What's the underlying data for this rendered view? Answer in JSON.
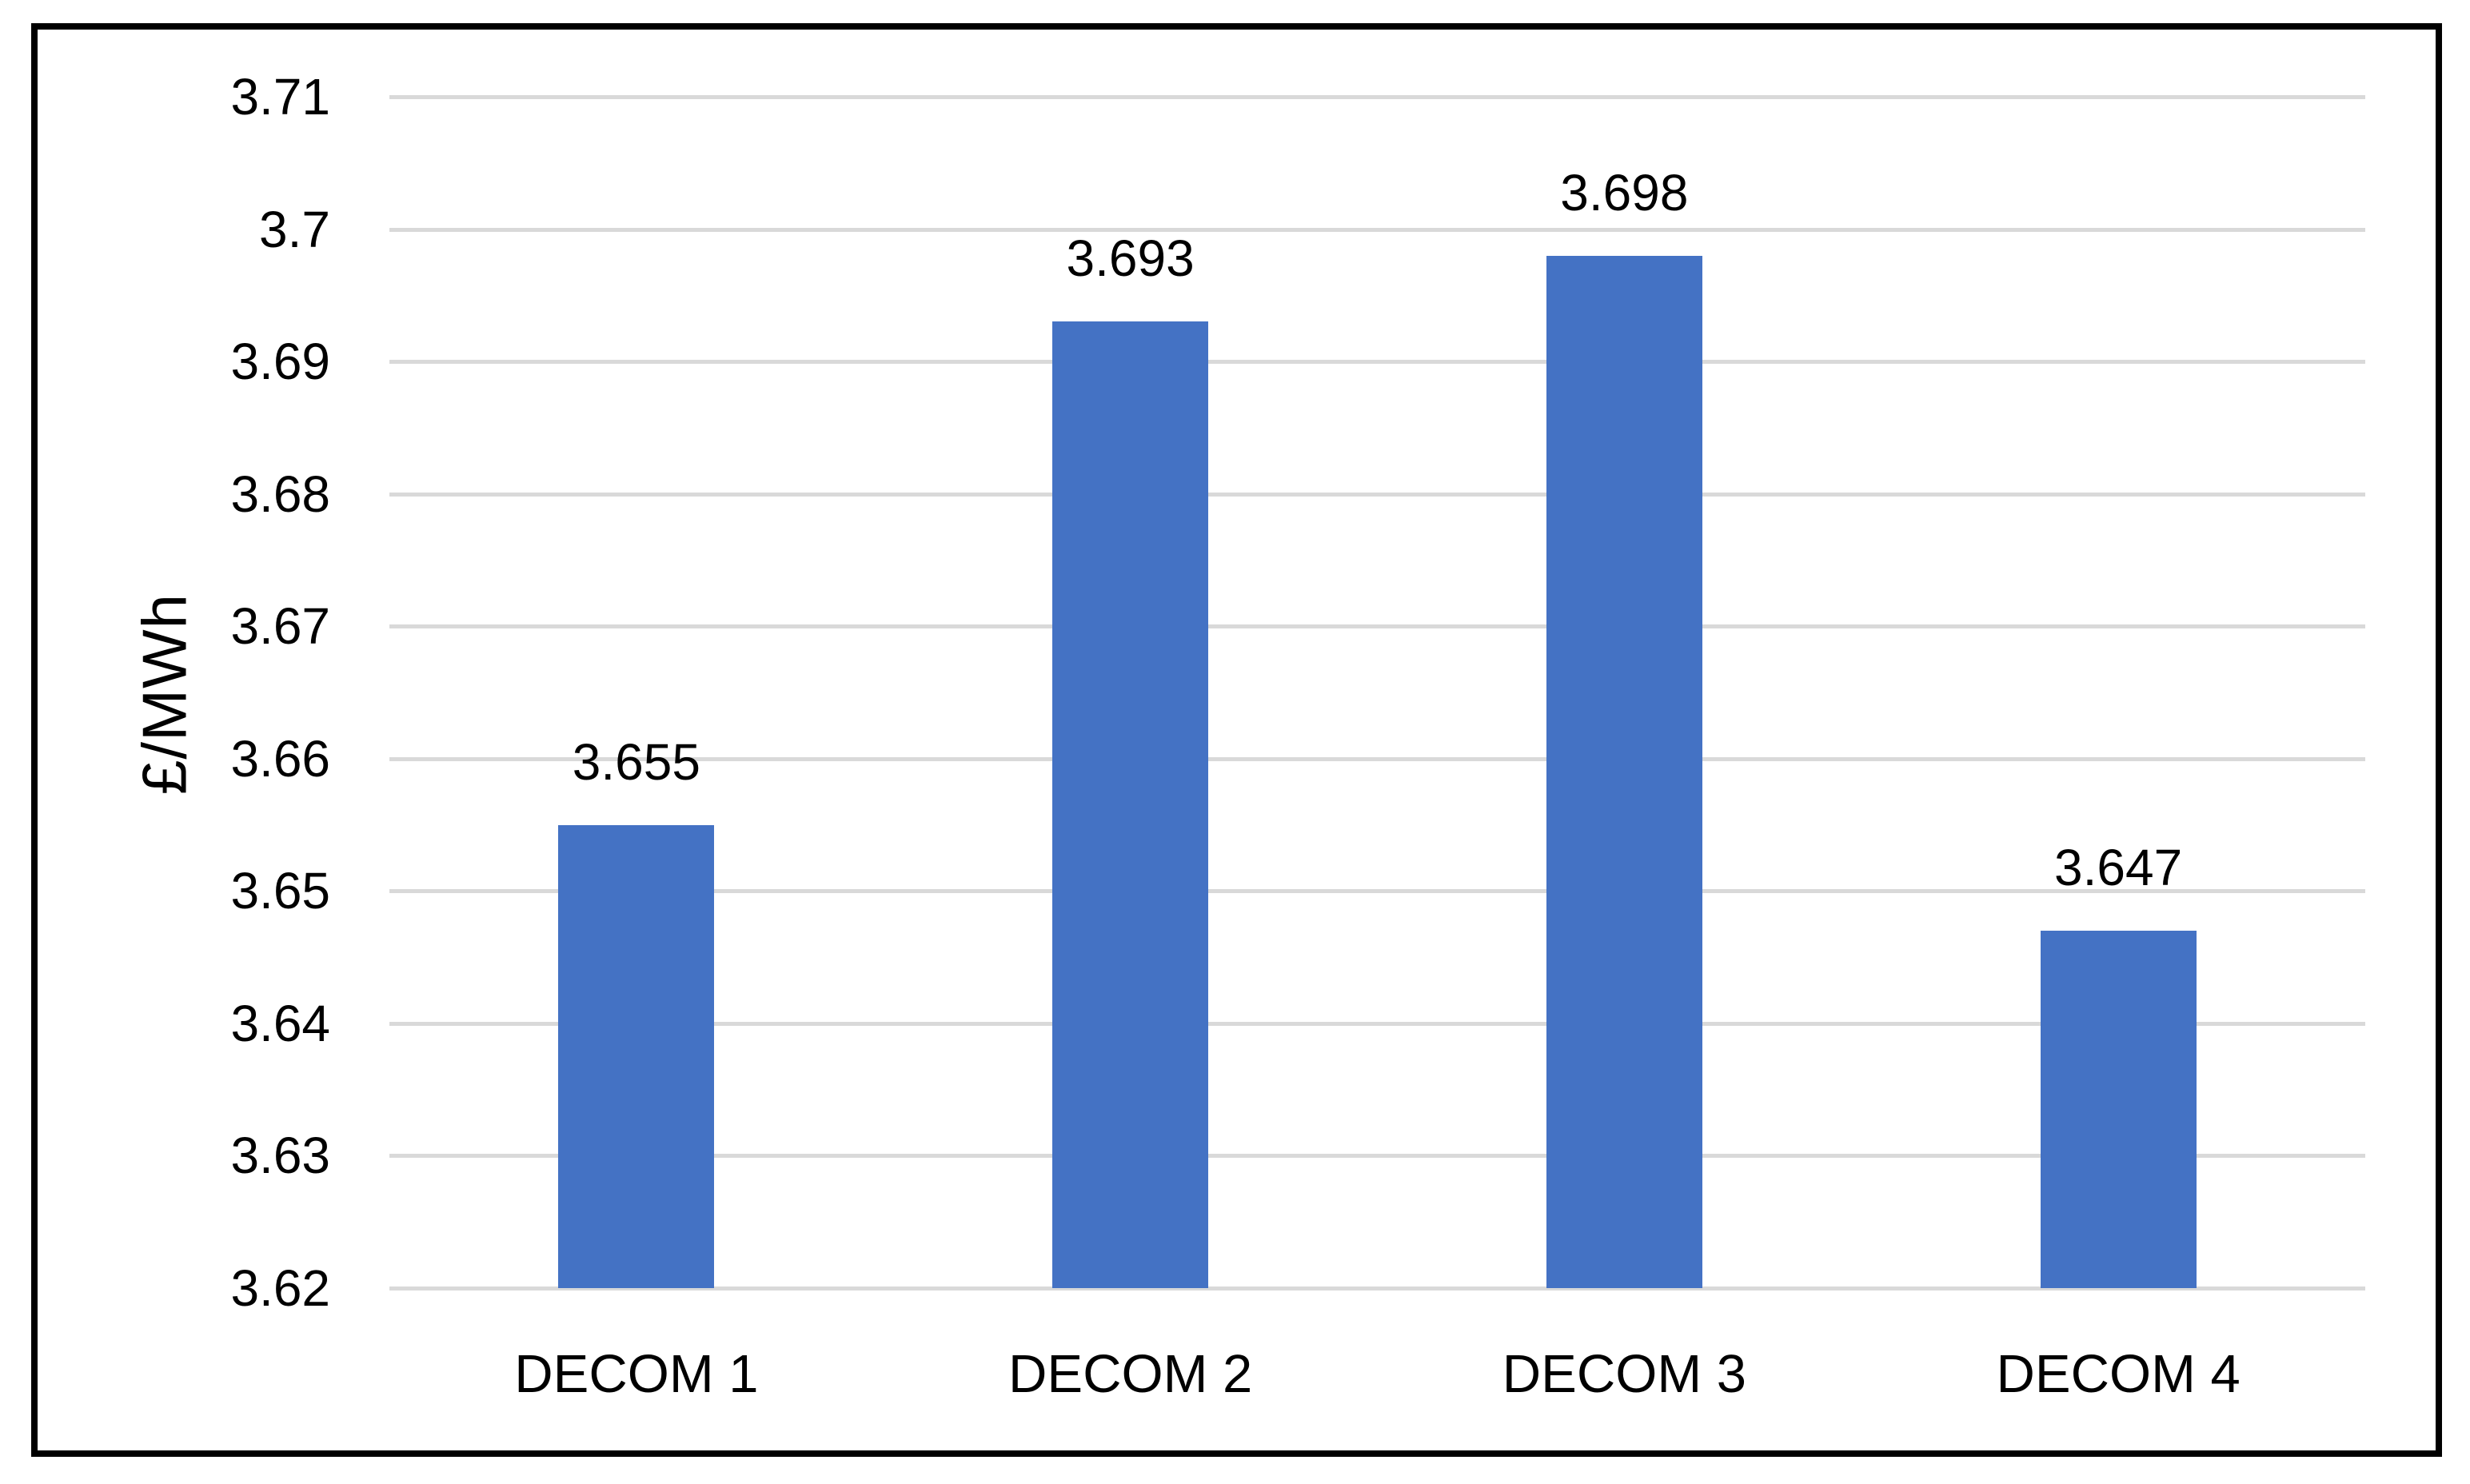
{
  "colors": {
    "bar": "#4472C4",
    "gridline": "#D9D9D9",
    "text": "#000000",
    "border": "#000000",
    "background": "#FFFFFF"
  },
  "chart_data": {
    "type": "bar",
    "title": "",
    "categories": [
      "DECOM 1",
      "DECOM 2",
      "DECOM 3",
      "DECOM 4"
    ],
    "values": [
      3.655,
      3.693,
      3.698,
      3.647
    ],
    "data_labels": [
      "3.655",
      "3.693",
      "3.698",
      "3.647"
    ],
    "xlabel": "",
    "ylabel": "£/MWh",
    "ylim": [
      3.62,
      3.71
    ],
    "ytick_labels": [
      "3.71",
      "3.7",
      "3.69",
      "3.68",
      "3.67",
      "3.66",
      "3.65",
      "3.64",
      "3.63",
      "3.62"
    ],
    "grid": true,
    "legend": false
  }
}
